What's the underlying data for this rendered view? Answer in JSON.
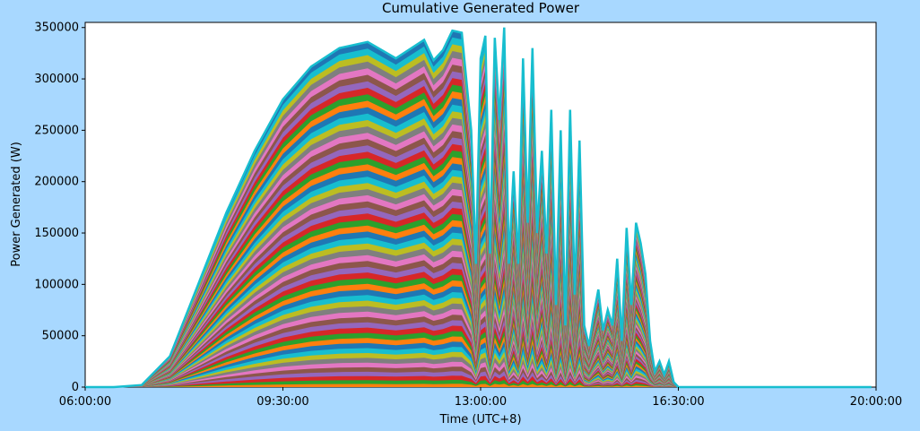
{
  "chart_data": {
    "type": "area",
    "title": "Cumulative Generated Power",
    "xlabel": "Time (UTC+8)",
    "ylabel": "Power Generated (W)",
    "xlim": [
      "06:00:00",
      "20:00:00"
    ],
    "ylim": [
      0,
      355000
    ],
    "x_ticks": [
      "06:00:00",
      "09:30:00",
      "13:00:00",
      "16:30:00",
      "20:00:00"
    ],
    "y_ticks": [
      0,
      50000,
      100000,
      150000,
      200000,
      250000,
      300000,
      350000
    ],
    "y_tick_labels": [
      "0",
      "50000",
      "100000",
      "150000",
      "200000",
      "250000",
      "300000",
      "350000"
    ],
    "grid": false,
    "legend": "none",
    "total": {
      "x": [
        "06:00:00",
        "06:30:00",
        "07:00:00",
        "07:30:00",
        "08:00:00",
        "08:30:00",
        "09:00:00",
        "09:30:00",
        "10:00:00",
        "10:30:00",
        "11:00:00",
        "11:30:00",
        "12:00:00",
        "12:10:00",
        "12:20:00",
        "12:30:00",
        "12:40:00",
        "12:50:00",
        "12:55:00",
        "13:00:00",
        "13:05:00",
        "13:10:00",
        "13:15:00",
        "13:20:00",
        "13:25:00",
        "13:30:00",
        "13:35:00",
        "13:40:00",
        "13:45:00",
        "13:50:00",
        "13:55:00",
        "14:00:00",
        "14:05:00",
        "14:10:00",
        "14:15:00",
        "14:20:00",
        "14:25:00",
        "14:30:00",
        "14:35:00",
        "14:40:00",
        "14:45:00",
        "14:50:00",
        "14:55:00",
        "15:00:00",
        "15:05:00",
        "15:10:00",
        "15:15:00",
        "15:20:00",
        "15:25:00",
        "15:30:00",
        "15:35:00",
        "15:40:00",
        "15:45:00",
        "15:50:00",
        "15:55:00",
        "16:00:00",
        "16:05:00",
        "16:10:00",
        "16:15:00",
        "16:20:00",
        "16:25:00",
        "16:30:00",
        "16:35:00",
        "16:40:00",
        "16:45:00",
        "16:50:00",
        "17:00:00",
        "17:10:00",
        "17:15:00",
        "17:20:00",
        "17:25:00",
        "17:30:00",
        "17:40:00",
        "17:50:00",
        "18:00:00",
        "18:30:00",
        "19:00:00",
        "19:30:00",
        "19:55:00"
      ],
      "values": [
        0,
        0,
        2000,
        30000,
        100000,
        170000,
        230000,
        280000,
        312000,
        330000,
        336000,
        320000,
        338000,
        318000,
        328000,
        347000,
        345000,
        250000,
        120000,
        320000,
        342000,
        130000,
        340000,
        260000,
        350000,
        120000,
        210000,
        120000,
        320000,
        160000,
        330000,
        150000,
        230000,
        130000,
        270000,
        80000,
        250000,
        60000,
        270000,
        90000,
        240000,
        60000,
        40000,
        70000,
        95000,
        55000,
        75000,
        60000,
        125000,
        45000,
        155000,
        80000,
        160000,
        140000,
        110000,
        45000,
        15000,
        25000,
        12000,
        25000,
        5000,
        0,
        0,
        0,
        0,
        0,
        0,
        0,
        0,
        0,
        0,
        0,
        0,
        0,
        0,
        0,
        0,
        0,
        0
      ]
    },
    "stack_colors": [
      "#1f77b4",
      "#ff7f0e",
      "#2ca02c",
      "#d62728",
      "#9467bd",
      "#8c564b",
      "#e377c2",
      "#7f7f7f",
      "#bcbd22",
      "#17becf"
    ]
  }
}
